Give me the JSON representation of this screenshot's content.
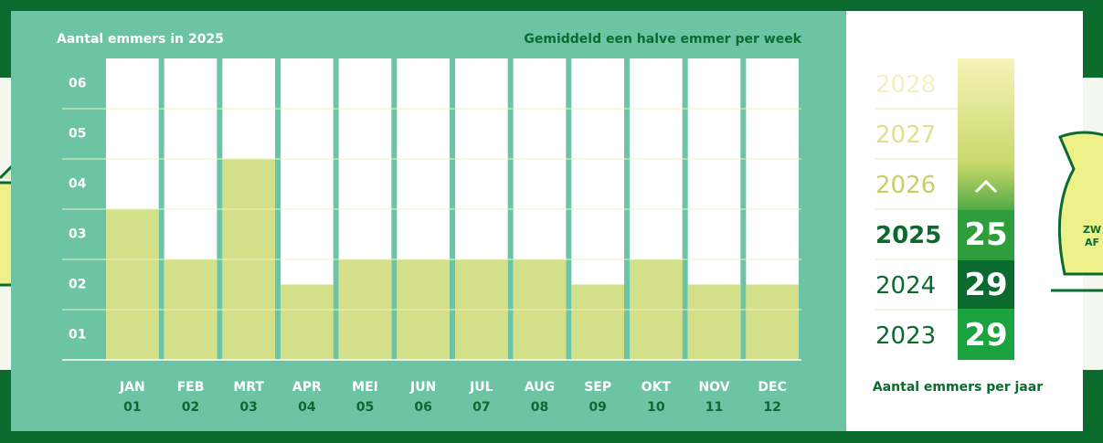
{
  "chart_data": {
    "type": "bar",
    "title": "Aantal emmers in 2025",
    "subtitle": "Gemiddeld een halve emmer per week",
    "categories": [
      "JAN",
      "FEB",
      "MRT",
      "APR",
      "MEI",
      "JUN",
      "JUL",
      "AUG",
      "SEP",
      "OKT",
      "NOV",
      "DEC"
    ],
    "category_numbers": [
      "01",
      "02",
      "03",
      "04",
      "05",
      "06",
      "07",
      "08",
      "09",
      "10",
      "11",
      "12"
    ],
    "values": [
      3,
      2,
      4,
      1.5,
      2,
      2,
      2,
      2,
      1.5,
      2,
      1.5,
      1.5
    ],
    "color": "#d4df8a",
    "ylim": [
      0,
      6
    ],
    "yticks": [
      {
        "value": 1,
        "label": "01"
      },
      {
        "value": 2,
        "label": "02"
      },
      {
        "value": 3,
        "label": "03"
      },
      {
        "value": 4,
        "label": "04"
      },
      {
        "value": 5,
        "label": "05"
      },
      {
        "value": 6,
        "label": "06"
      }
    ],
    "grid": true
  },
  "year_panel": {
    "years": [
      "2028",
      "2027",
      "2026",
      "2025",
      "2024",
      "2023"
    ],
    "totals": [
      25,
      29,
      29
    ],
    "caption": "Aantal emmers per jaar"
  },
  "bag_label": [
    "ZW",
    "AF"
  ]
}
